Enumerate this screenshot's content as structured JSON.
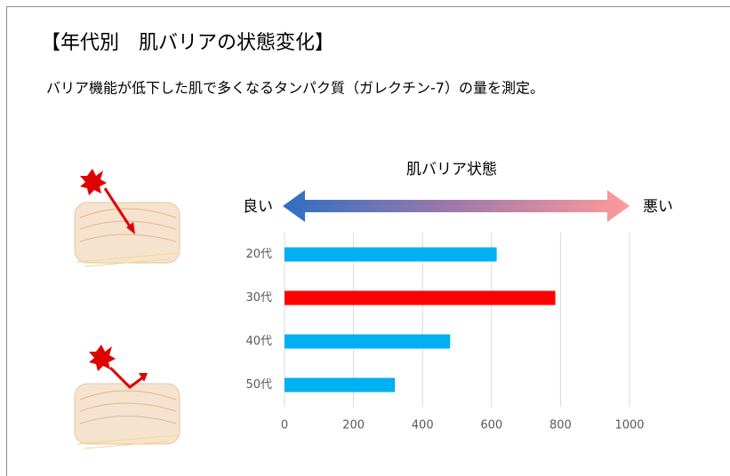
{
  "title": "【年代別　肌バリアの状態変化】",
  "subtitle": "バリア機能が低下した肌で多くなるタンパク質（ガレクチン-7）の量を測定。",
  "chart_data": {
    "type": "bar",
    "scale_title": "肌バリア状態",
    "scale_left": "良い",
    "scale_right": "悪い",
    "categories": [
      "20代",
      "30代",
      "40代",
      "50代"
    ],
    "values": [
      615,
      785,
      480,
      320
    ],
    "colors": [
      "#00b0f0",
      "#ff0000",
      "#00b0f0",
      "#00b0f0"
    ],
    "xlim": [
      0,
      1000
    ],
    "xticks": [
      0,
      200,
      400,
      600,
      800,
      1000
    ],
    "grid": true
  }
}
